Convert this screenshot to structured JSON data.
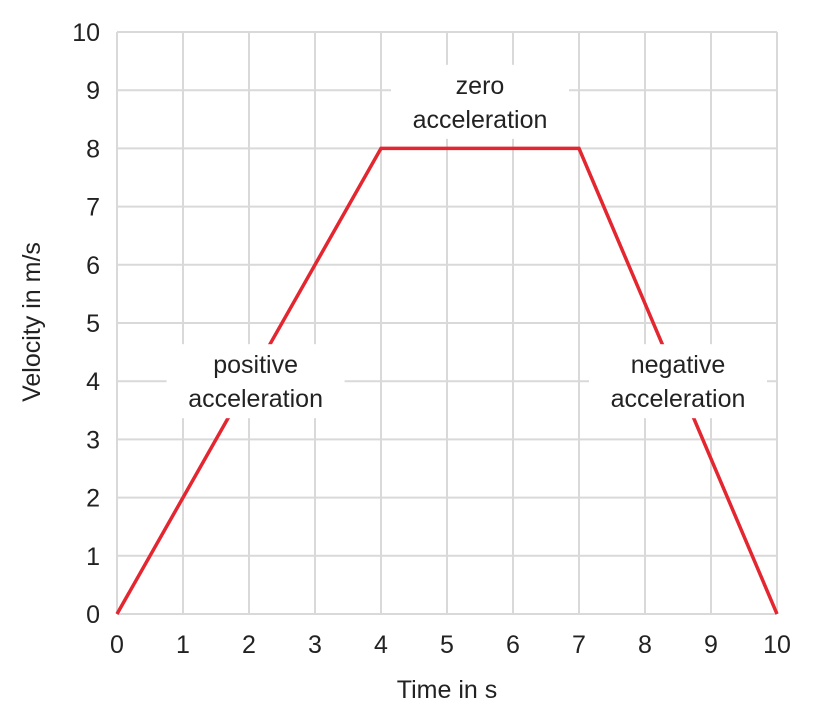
{
  "chart_data": {
    "type": "line",
    "xlabel": "Time in s",
    "ylabel": "Velocity in m/s",
    "xlim": [
      0,
      10
    ],
    "ylim": [
      0,
      10
    ],
    "x_ticks": [
      0,
      1,
      2,
      3,
      4,
      5,
      6,
      7,
      8,
      9,
      10
    ],
    "y_ticks": [
      0,
      1,
      2,
      3,
      4,
      5,
      6,
      7,
      8,
      9,
      10
    ],
    "grid": true,
    "series": [
      {
        "color": "#e3262f",
        "points": [
          [
            0,
            0
          ],
          [
            4,
            8
          ],
          [
            7,
            8
          ],
          [
            10,
            0
          ]
        ]
      }
    ],
    "annotations": [
      {
        "lines": [
          "positive",
          "acceleration"
        ],
        "x": 2.1,
        "y": 4.0
      },
      {
        "lines": [
          "zero",
          "acceleration"
        ],
        "x": 5.5,
        "y": 8.8
      },
      {
        "lines": [
          "negative",
          "acceleration"
        ],
        "x": 8.5,
        "y": 4.0
      }
    ],
    "colors": {
      "grid": "#d9d9d9",
      "text": "#222222",
      "line": "#e3262f"
    }
  }
}
